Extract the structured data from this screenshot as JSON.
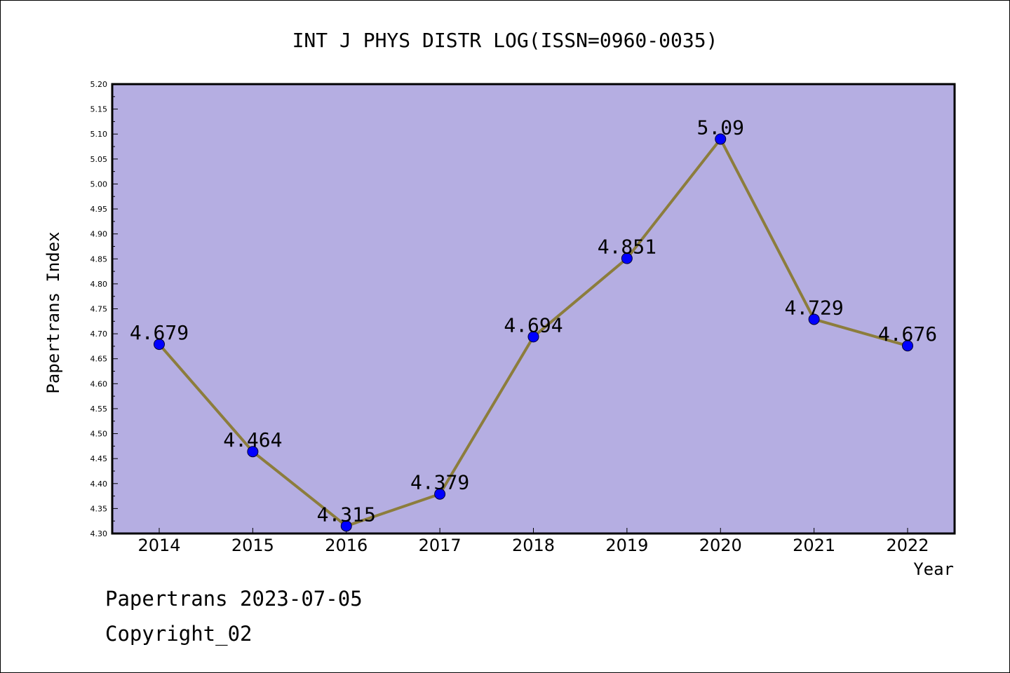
{
  "chart_data": {
    "type": "line",
    "title": "INT J PHYS DISTR LOG(ISSN=0960-0035)",
    "xlabel": "Year",
    "ylabel": "Papertrans Index",
    "categories": [
      "2014",
      "2015",
      "2016",
      "2017",
      "2018",
      "2019",
      "2020",
      "2021",
      "2022"
    ],
    "values": [
      4.679,
      4.464,
      4.315,
      4.379,
      4.694,
      4.851,
      5.09,
      4.729,
      4.676
    ],
    "value_labels": [
      "4.679",
      "4.464",
      "4.315",
      "4.379",
      "4.694",
      "4.851",
      "5.09",
      "4.729",
      "4.676"
    ],
    "ylim": [
      4.3,
      5.2
    ],
    "yticks": [
      "4.30",
      "4.35",
      "4.40",
      "4.45",
      "4.50",
      "4.55",
      "4.60",
      "4.65",
      "4.70",
      "4.75",
      "4.80",
      "4.85",
      "4.90",
      "4.95",
      "5.00",
      "5.05",
      "5.10",
      "5.15",
      "5.20"
    ],
    "grid": false,
    "colors": {
      "plot_background": "#b5aee2",
      "line": "#8c7d3c",
      "marker": "#0000ff"
    }
  },
  "footer": {
    "line1": "Papertrans 2023-07-05",
    "line2": "Copyright_02"
  }
}
